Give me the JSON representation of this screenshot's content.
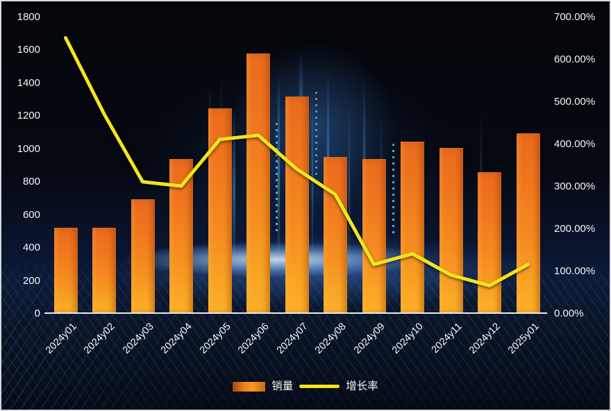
{
  "chart_data": {
    "type": "bar",
    "subtype": "combo-bar-line-dual-axis",
    "title": "",
    "categories": [
      "2024y01",
      "2024y02",
      "2024y03",
      "2024y04",
      "2024y05",
      "2024y06",
      "2024y07",
      "2024y08",
      "2024y09",
      "2024y10",
      "2024y11",
      "2024y12",
      "2025y01"
    ],
    "series": [
      {
        "name": "销量",
        "type": "bar",
        "axis": "left",
        "values": [
          520,
          520,
          690,
          935,
          1245,
          1575,
          1315,
          950,
          935,
          1040,
          1005,
          855,
          1090
        ]
      },
      {
        "name": "增长率",
        "type": "line",
        "axis": "right",
        "values_percent": [
          650,
          470,
          310,
          300,
          410,
          420,
          340,
          280,
          115,
          140,
          90,
          65,
          115
        ]
      }
    ],
    "left_axis": {
      "min": 0,
      "max": 1800,
      "step": 200,
      "tick_labels": [
        "0",
        "200",
        "400",
        "600",
        "800",
        "1000",
        "1200",
        "1400",
        "1600",
        "1800"
      ]
    },
    "right_axis": {
      "min": 0,
      "max": 700,
      "step": 100,
      "tick_labels": [
        "0.00%",
        "100.00%",
        "200.00%",
        "300.00%",
        "400.00%",
        "500.00%",
        "600.00%",
        "700.00%"
      ]
    },
    "legend": {
      "position": "bottom",
      "entries": [
        "销量",
        "增长率"
      ]
    },
    "grid": false,
    "background_style": "dark tech backdrop with blue light streaks and horizon glow"
  },
  "colors": {
    "bar_gradient_top": "#e96a1d",
    "bar_gradient_bottom": "#fcb12a",
    "line": "#f2e51d",
    "axis_text": "#f5f5f5",
    "axis_line": "#e9e9ec",
    "background_base": "#05080f",
    "glow_blue": "#7fb3e8"
  }
}
